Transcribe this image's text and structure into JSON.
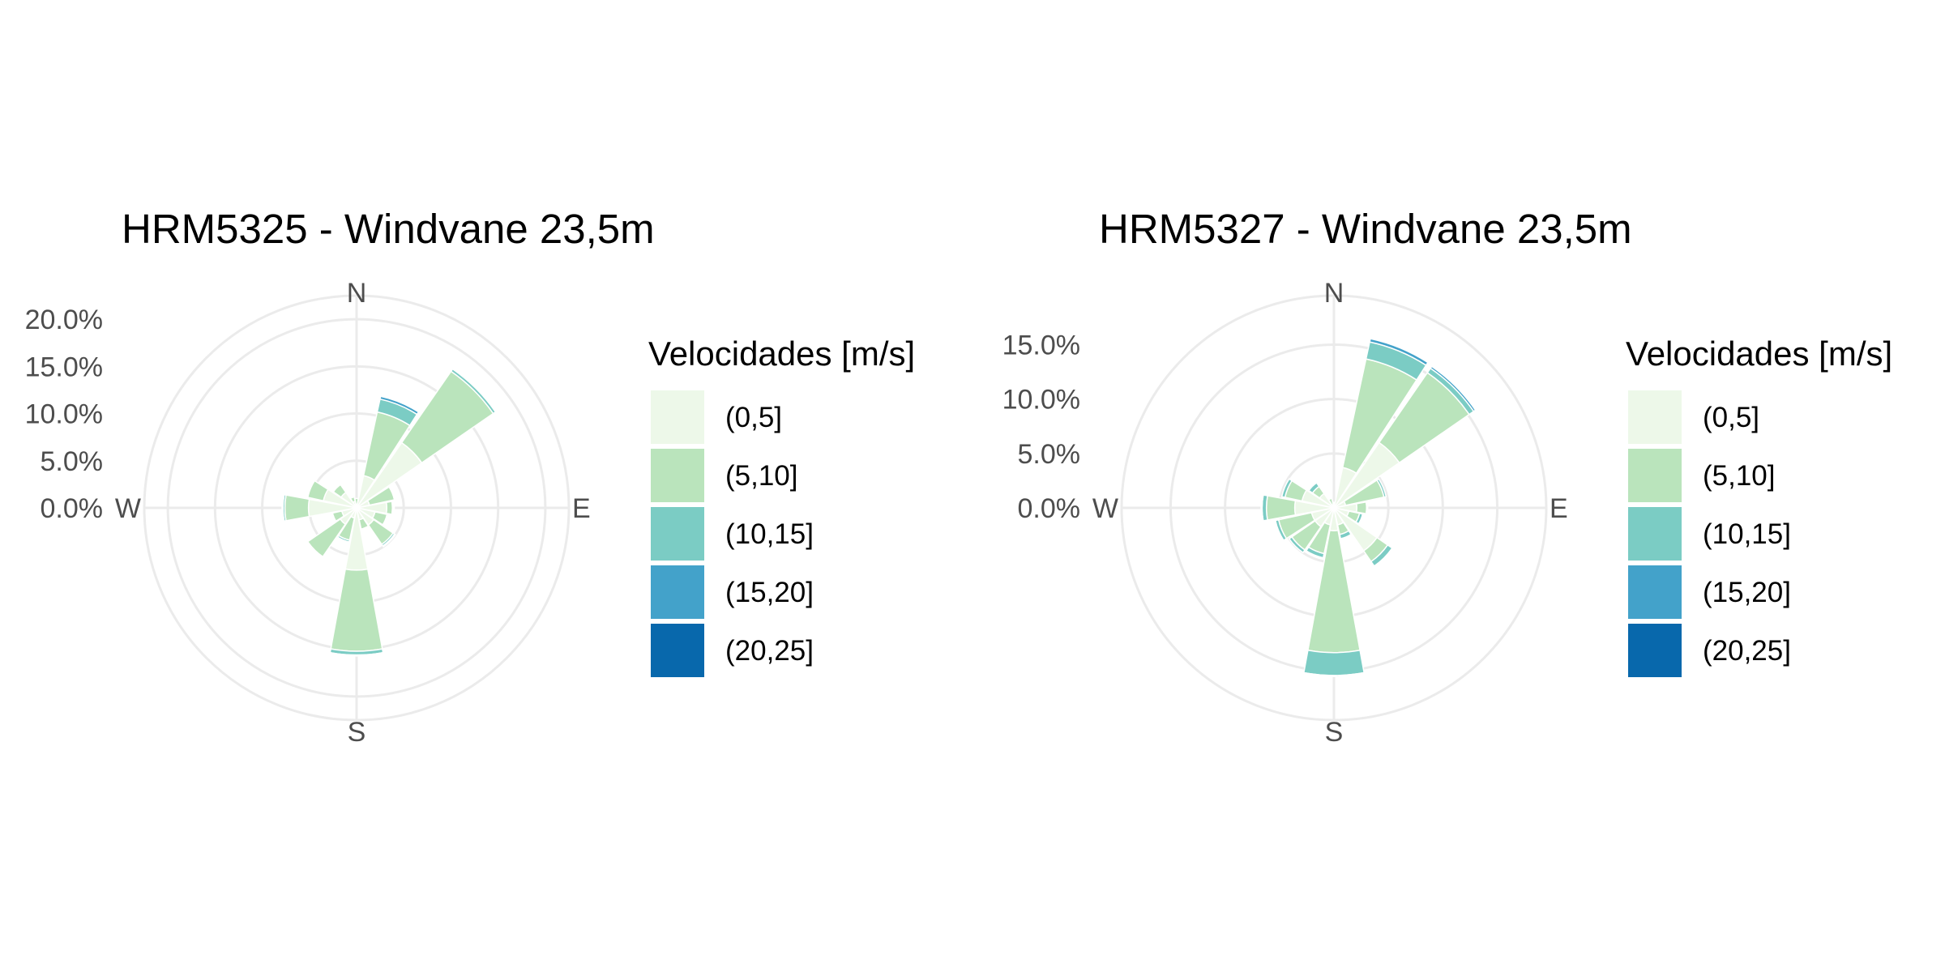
{
  "colors": {
    "bins": [
      "#edf8e9",
      "#bae4bc",
      "#7bccc4",
      "#43a2ca",
      "#0868ac"
    ],
    "grid": "#ebebeb",
    "text": "#000000",
    "axis_text": "#4d4d4d"
  },
  "legend": {
    "title": "Velocidades [m/s]",
    "items": [
      "(0,5]",
      "(5,10]",
      "(10,15]",
      "(15,20]",
      "(20,25]"
    ]
  },
  "chart_data": [
    {
      "type": "windrose",
      "title": "HRM5325 - Windvane 23,5m",
      "directions": [
        "N",
        "NNE",
        "NE",
        "ENE",
        "E",
        "ESE",
        "SE",
        "SSE",
        "S",
        "SSW",
        "SW",
        "WSW",
        "W",
        "WNW",
        "NW",
        "NNW"
      ],
      "compass_labels": [
        "N",
        "E",
        "S",
        "W"
      ],
      "radial_ticks": [
        "0.0%",
        "5.0%",
        "10.0%",
        "15.0%",
        "20.0%"
      ],
      "rlim": [
        0,
        22.5
      ],
      "series": [
        {
          "name": "(0,5]",
          "values": [
            0.4,
            3.5,
            8.4,
            1.4,
            3.2,
            2.0,
            2.2,
            1.3,
            6.6,
            1.1,
            2.1,
            1.6,
            5.1,
            3.6,
            2.0,
            0.7
          ]
        },
        {
          "name": "(5,10]",
          "values": [
            0.6,
            6.9,
            9.2,
            2.7,
            0.6,
            1.3,
            2.5,
            1.0,
            8.6,
            2.4,
            4.2,
            1.0,
            2.5,
            1.7,
            1.0,
            0.5
          ]
        },
        {
          "name": "(10,15]",
          "values": [
            0.0,
            1.4,
            0.3,
            0.1,
            0.1,
            0.0,
            0.2,
            0.1,
            0.4,
            0.2,
            0.1,
            0.0,
            0.2,
            0.1,
            0.1,
            0.1
          ]
        },
        {
          "name": "(15,20]",
          "values": [
            0.0,
            0.3,
            0.1,
            0.1,
            0.1,
            0.0,
            0.1,
            0.1,
            0.1,
            0.1,
            0.0,
            0.0,
            0.1,
            0.0,
            0.0,
            0.0
          ]
        },
        {
          "name": "(20,25]",
          "values": [
            0.0,
            0.0,
            0.0,
            0.0,
            0.0,
            0.0,
            0.0,
            0.0,
            0.0,
            0.0,
            0.0,
            0.0,
            0.0,
            0.0,
            0.0,
            0.0
          ]
        }
      ]
    },
    {
      "type": "windrose",
      "title": "HRM5327 - Windvane 23,5m",
      "directions": [
        "N",
        "NNE",
        "NE",
        "ENE",
        "E",
        "ESE",
        "SE",
        "SSE",
        "S",
        "SSW",
        "SW",
        "WSW",
        "W",
        "WNW",
        "NW",
        "NNW"
      ],
      "compass_labels": [
        "N",
        "E",
        "S",
        "W"
      ],
      "radial_ticks": [
        "0.0%",
        "5.0%",
        "10.0%",
        "15.0%"
      ],
      "rlim": [
        0,
        19.5
      ],
      "series": [
        {
          "name": "(0,5]",
          "values": [
            0.1,
            3.8,
            7.3,
            1.1,
            2.1,
            1.4,
            4.8,
            1.6,
            2.1,
            1.6,
            2.1,
            2.1,
            3.6,
            3.0,
            1.6,
            0.3
          ]
        },
        {
          "name": "(5,10]",
          "values": [
            0.3,
            10.2,
            7.8,
            3.6,
            0.9,
            1.0,
            1.2,
            0.9,
            11.2,
            2.7,
            2.6,
            3.1,
            2.6,
            1.6,
            0.8,
            0.6
          ]
        },
        {
          "name": "(10,15]",
          "values": [
            0.1,
            1.6,
            0.5,
            0.2,
            0.1,
            0.3,
            0.5,
            0.4,
            2.1,
            0.4,
            0.3,
            0.3,
            0.4,
            0.3,
            0.4,
            0.1
          ]
        },
        {
          "name": "(15,20]",
          "values": [
            0.0,
            0.3,
            0.2,
            0.0,
            0.0,
            0.1,
            0.0,
            0.1,
            0.1,
            0.1,
            0.0,
            0.0,
            0.1,
            0.0,
            0.0,
            0.0
          ]
        },
        {
          "name": "(20,25]",
          "values": [
            0.0,
            0.0,
            0.0,
            0.0,
            0.0,
            0.0,
            0.0,
            0.0,
            0.0,
            0.0,
            0.0,
            0.0,
            0.0,
            0.0,
            0.0,
            0.0
          ]
        }
      ]
    }
  ]
}
